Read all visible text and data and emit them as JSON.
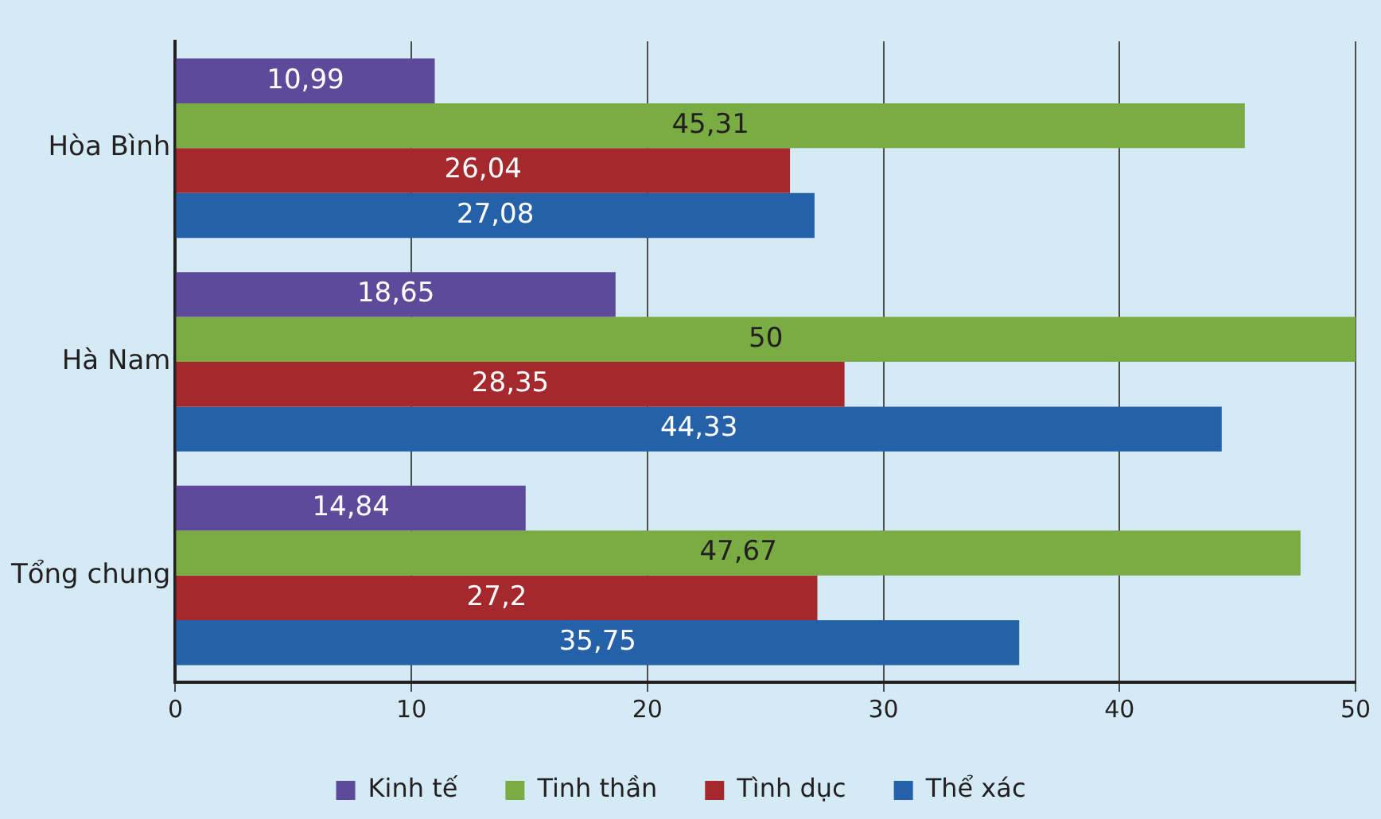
{
  "chart_data": {
    "type": "bar",
    "orientation": "horizontal",
    "categories": [
      "Hòa Bình",
      "Hà Nam",
      "Tổng chung"
    ],
    "series": [
      {
        "name": "Kinh tế",
        "color": "#5e4a9b",
        "values": [
          10.99,
          18.65,
          14.84
        ],
        "value_labels": [
          "10,99",
          "18,65",
          "14,84"
        ]
      },
      {
        "name": "Tinh thần",
        "color": "#7aac44",
        "values": [
          45.31,
          50,
          47.67
        ],
        "value_labels": [
          "45,31",
          "50",
          "47,67"
        ]
      },
      {
        "name": "Tình dục",
        "color": "#a5282d",
        "values": [
          26.04,
          28.35,
          27.2
        ],
        "value_labels": [
          "26,04",
          "28,35",
          "27,2"
        ]
      },
      {
        "name": "Thể xác",
        "color": "#2561a8",
        "values": [
          27.08,
          44.33,
          35.75
        ],
        "value_labels": [
          "27,08",
          "44,33",
          "35,75"
        ]
      }
    ],
    "xlim": [
      0,
      50
    ],
    "xticks": [
      0,
      10,
      20,
      30,
      40,
      50
    ],
    "grid": "x",
    "legend": "bottom"
  }
}
